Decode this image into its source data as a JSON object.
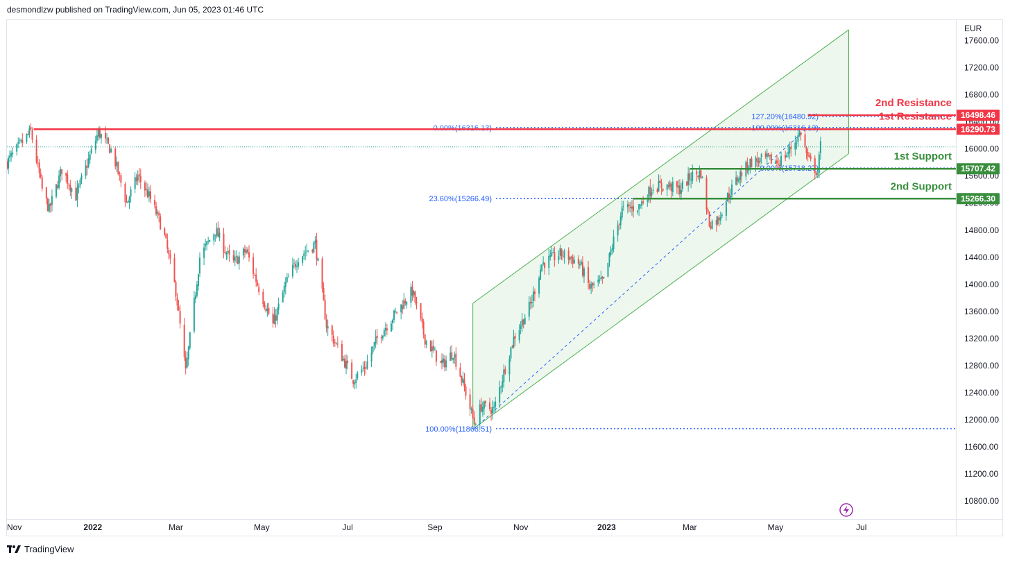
{
  "header": {
    "published": "desmondlzw published on TradingView.com, Jun 05, 2023 01:46 UTC"
  },
  "footer": {
    "brand": "TradingView",
    "logo_icon": "tradingview-logo-icon"
  },
  "chart_data": {
    "type": "candlestick",
    "currency": "EUR",
    "y_axis": {
      "min": 10600,
      "max": 17900,
      "ticks": [
        10800,
        11200,
        11600,
        12000,
        12400,
        12800,
        13200,
        13600,
        14000,
        14400,
        14800,
        15200,
        15600,
        16000,
        16400,
        16800,
        17200,
        17600
      ]
    },
    "x_axis": {
      "range": [
        "2021-11-01",
        "2023-07-25"
      ],
      "labels": [
        {
          "text": "Nov",
          "date": "2021-11-01",
          "bold": false
        },
        {
          "text": "2022",
          "date": "2022-01-01",
          "bold": true
        },
        {
          "text": "Mar",
          "date": "2022-03-01",
          "bold": false
        },
        {
          "text": "May",
          "date": "2022-05-01",
          "bold": false
        },
        {
          "text": "Jul",
          "date": "2022-07-01",
          "bold": false
        },
        {
          "text": "Sep",
          "date": "2022-09-01",
          "bold": false
        },
        {
          "text": "Nov",
          "date": "2022-11-01",
          "bold": false
        },
        {
          "text": "2023",
          "date": "2023-01-01",
          "bold": true
        },
        {
          "text": "Mar",
          "date": "2023-03-01",
          "bold": false
        },
        {
          "text": "May",
          "date": "2023-05-01",
          "bold": false
        },
        {
          "text": "Jul",
          "date": "2023-07-01",
          "bold": false
        }
      ]
    },
    "price_path": [
      [
        "2021-11-01",
        15800
      ],
      [
        "2021-11-10",
        16050
      ],
      [
        "2021-11-18",
        16260
      ],
      [
        "2021-11-26",
        15400
      ],
      [
        "2021-12-01",
        15100
      ],
      [
        "2021-12-10",
        15700
      ],
      [
        "2021-12-20",
        15300
      ],
      [
        "2022-01-05",
        16250
      ],
      [
        "2022-01-15",
        15950
      ],
      [
        "2022-01-25",
        15200
      ],
      [
        "2022-02-02",
        15600
      ],
      [
        "2022-02-10",
        15300
      ],
      [
        "2022-02-20",
        14800
      ],
      [
        "2022-03-01",
        13900
      ],
      [
        "2022-03-08",
        12700
      ],
      [
        "2022-03-18",
        14400
      ],
      [
        "2022-03-29",
        14800
      ],
      [
        "2022-04-10",
        14300
      ],
      [
        "2022-04-20",
        14500
      ],
      [
        "2022-04-28",
        14000
      ],
      [
        "2022-05-09",
        13400
      ],
      [
        "2022-05-18",
        14000
      ],
      [
        "2022-05-27",
        14400
      ],
      [
        "2022-06-08",
        14600
      ],
      [
        "2022-06-16",
        13400
      ],
      [
        "2022-06-23",
        13100
      ],
      [
        "2022-07-05",
        12600
      ],
      [
        "2022-07-14",
        12800
      ],
      [
        "2022-07-22",
        13200
      ],
      [
        "2022-08-05",
        13600
      ],
      [
        "2022-08-16",
        13900
      ],
      [
        "2022-08-25",
        13200
      ],
      [
        "2022-09-06",
        12800
      ],
      [
        "2022-09-14",
        13000
      ],
      [
        "2022-09-23",
        12400
      ],
      [
        "2022-09-29",
        11950
      ],
      [
        "2022-10-04",
        12200
      ],
      [
        "2022-10-13",
        12150
      ],
      [
        "2022-10-20",
        12700
      ],
      [
        "2022-10-27",
        13200
      ],
      [
        "2022-11-08",
        13700
      ],
      [
        "2022-11-16",
        14300
      ],
      [
        "2022-11-29",
        14450
      ],
      [
        "2022-12-06",
        14400
      ],
      [
        "2022-12-13",
        14300
      ],
      [
        "2022-12-20",
        13950
      ],
      [
        "2022-12-30",
        14050
      ],
      [
        "2023-01-06",
        14650
      ],
      [
        "2023-01-12",
        15100
      ],
      [
        "2023-01-24",
        15150
      ],
      [
        "2023-02-03",
        15450
      ],
      [
        "2023-02-14",
        15450
      ],
      [
        "2023-02-22",
        15400
      ],
      [
        "2023-03-02",
        15600
      ],
      [
        "2023-03-09",
        15650
      ],
      [
        "2023-03-15",
        14900
      ],
      [
        "2023-03-21",
        14950
      ],
      [
        "2023-03-28",
        15300
      ],
      [
        "2023-04-05",
        15600
      ],
      [
        "2023-04-13",
        15800
      ],
      [
        "2023-04-24",
        15850
      ],
      [
        "2023-05-03",
        15800
      ],
      [
        "2023-05-10",
        15950
      ],
      [
        "2023-05-19",
        16250
      ],
      [
        "2023-05-24",
        15850
      ],
      [
        "2023-05-31",
        15650
      ],
      [
        "2023-06-02",
        16050
      ]
    ],
    "channel": {
      "start_date": "2022-09-28",
      "end_date": "2023-06-22",
      "upper": [
        13720,
        17760
      ],
      "lower": [
        11860,
        15930
      ]
    },
    "fibonacci_retracement": {
      "start_point": [
        "2022-09-29",
        11868.51
      ],
      "end_point": [
        "2023-01-05",
        16316.13
      ],
      "levels": [
        {
          "label": "0.00%(16316.13)",
          "value": 16316.13
        },
        {
          "label": "23.60%(15266.49)",
          "value": 15266.49
        },
        {
          "label": "100.00%(11868.51)",
          "value": 11868.51
        }
      ]
    },
    "fibonacci_extension": {
      "levels": [
        {
          "label": "127.20%(16480.92)",
          "value": 16480.92
        },
        {
          "label": "100.00%(16316.13)",
          "value": 16316.13
        },
        {
          "label": "0.00%(15718.27)",
          "value": 15718.27
        }
      ]
    },
    "horizontal_levels": [
      {
        "name": "2nd Resistance",
        "value": 16498.46,
        "price_label": "16498.46",
        "color": "#f23645",
        "start_date": "2023-05-24"
      },
      {
        "name": "1st Resistance",
        "value": 16290.73,
        "price_label": "16290.73",
        "color": "#f23645",
        "start_date": "2021-11-20"
      },
      {
        "name": "1st Support",
        "value": 15707.42,
        "price_label": "15707.42",
        "color": "#388e3c",
        "start_date": "2023-03-01"
      },
      {
        "name": "2nd Support",
        "value": 15266.3,
        "price_label": "15266.30",
        "color": "#388e3c",
        "start_date": "2023-01-20"
      }
    ],
    "last_price": 16030,
    "colors": {
      "up": "#26a69a",
      "down": "#ef5350",
      "channel": "#4caf50",
      "fib": "#2962ff"
    }
  }
}
